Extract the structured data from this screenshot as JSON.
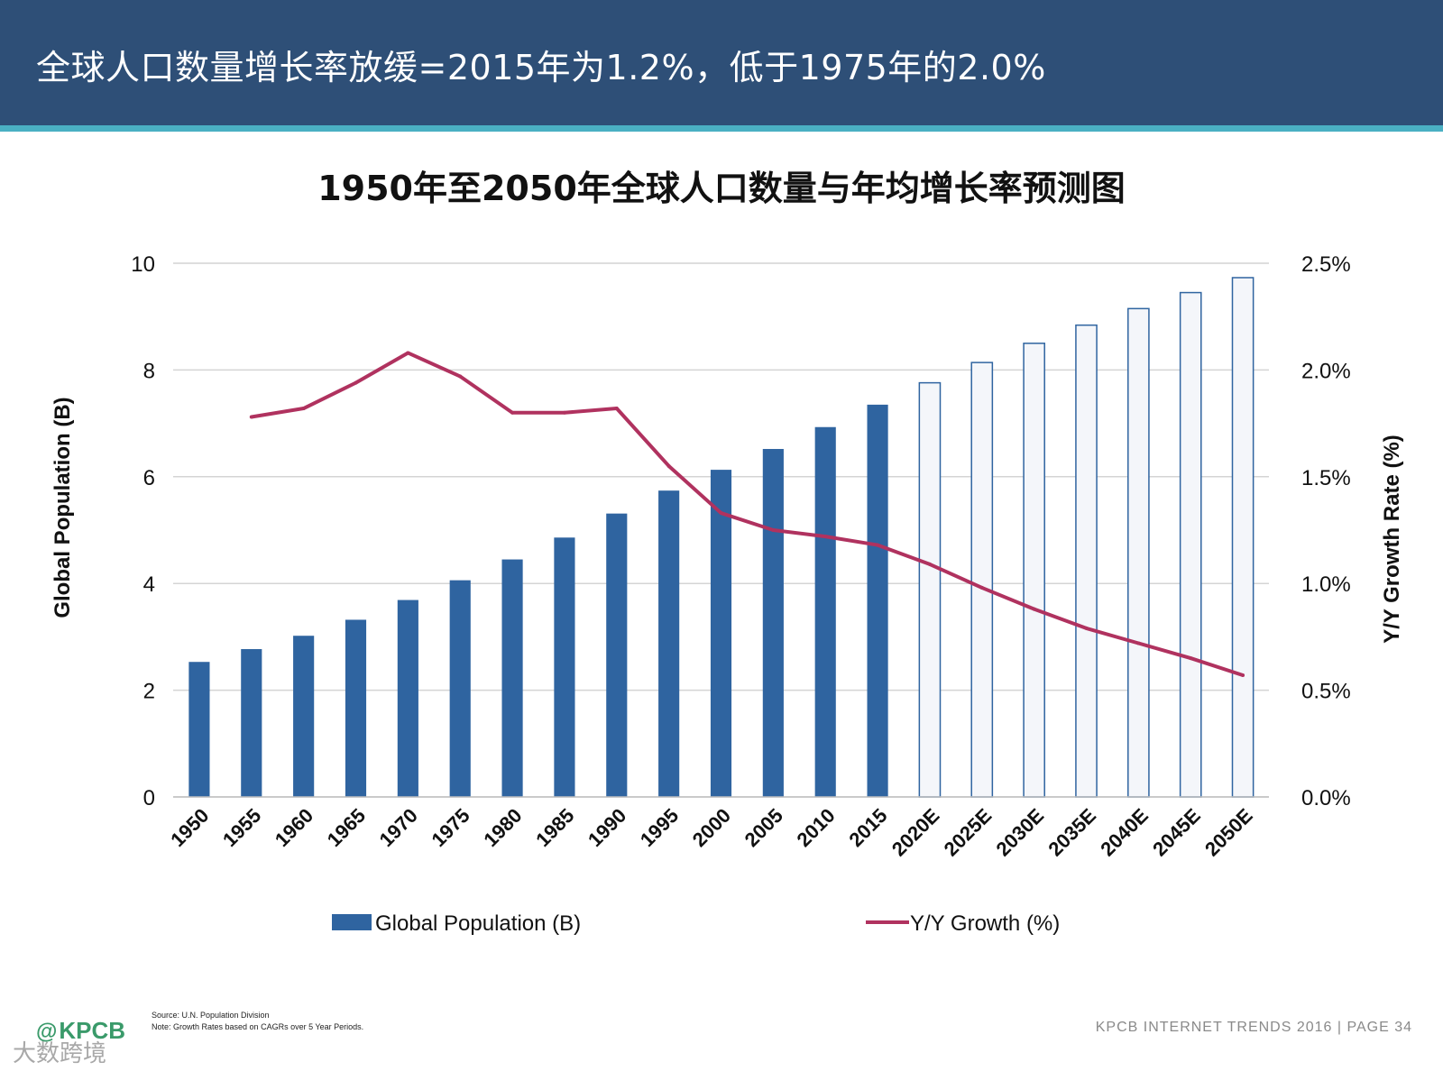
{
  "header": {
    "title": "全球人口数量增长率放缓=2015年为1.2%，低于1975年的2.0%"
  },
  "chart_data": {
    "type": "bar",
    "title": "1950年至2050年全球人口数量与年均增长率预测图",
    "categories": [
      "1950",
      "1955",
      "1960",
      "1965",
      "1970",
      "1975",
      "1980",
      "1985",
      "1990",
      "1995",
      "2000",
      "2005",
      "2010",
      "2015",
      "2020E",
      "2025E",
      "2030E",
      "2035E",
      "2040E",
      "2045E",
      "2050E"
    ],
    "projected_categories": [
      "2020E",
      "2025E",
      "2030E",
      "2035E",
      "2040E",
      "2045E",
      "2050E"
    ],
    "series": [
      {
        "name": "Global Population (B)",
        "kind": "bar",
        "axis": "left",
        "color": "#2f64a0",
        "values": [
          2.53,
          2.77,
          3.02,
          3.32,
          3.69,
          4.06,
          4.45,
          4.86,
          5.31,
          5.74,
          6.13,
          6.52,
          6.93,
          7.35,
          7.76,
          8.14,
          8.5,
          8.84,
          9.15,
          9.45,
          9.73
        ]
      },
      {
        "name": "Y/Y Growth (%)",
        "kind": "line",
        "axis": "right",
        "color": "#b0325f",
        "values": [
          null,
          1.78,
          1.82,
          1.94,
          2.08,
          1.97,
          1.8,
          1.8,
          1.82,
          1.55,
          1.33,
          1.25,
          1.22,
          1.18,
          1.09,
          0.98,
          0.88,
          0.79,
          0.72,
          0.65,
          0.57
        ]
      }
    ],
    "ylabel": "Global Population (B)",
    "ylabel_right": "Y/Y Growth Rate (%)",
    "ylim": [
      0,
      10
    ],
    "yticks": [
      "0",
      "2",
      "4",
      "6",
      "8",
      "10"
    ],
    "ylim_right": [
      0,
      2.5
    ],
    "yticks_right": [
      "0.0%",
      "0.5%",
      "1.0%",
      "1.5%",
      "2.0%",
      "2.5%"
    ],
    "grid": true,
    "legend_position": "bottom"
  },
  "footer": {
    "logo": "KPCB",
    "source": "Source: U.N. Population Division",
    "note": "Note: Growth Rates based on CAGRs over 5 Year Periods.",
    "right_text": "KPCB INTERNET TRENDS 2016  |  PAGE 34",
    "watermark": "大数跨境"
  }
}
